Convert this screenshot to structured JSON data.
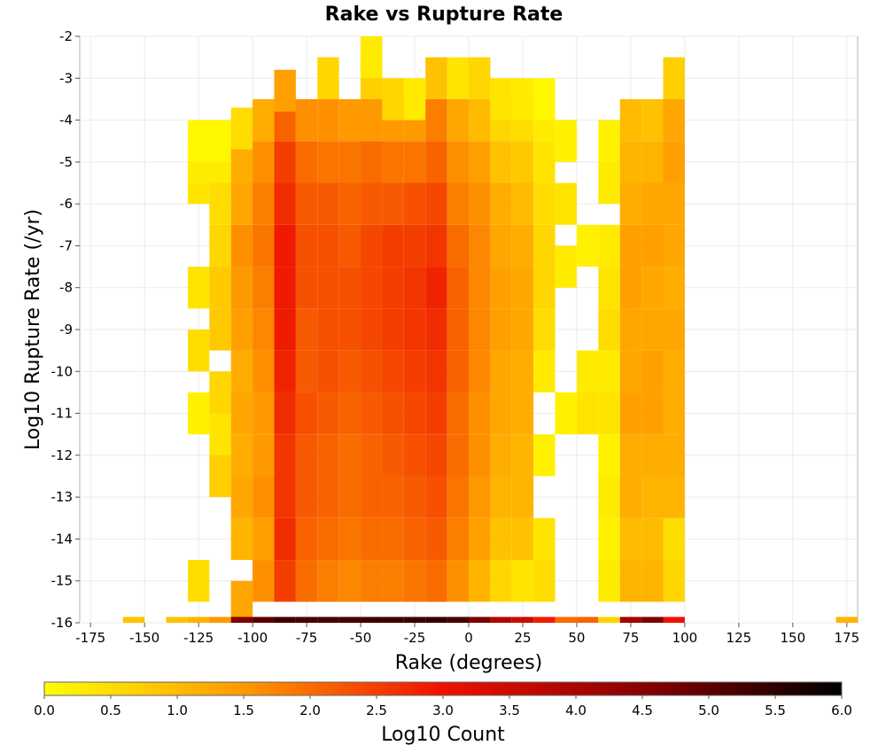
{
  "chart_data": {
    "type": "heatmap",
    "title": "Rake vs Rupture Rate",
    "xlabel": "Rake (degrees)",
    "ylabel": "Log10 Rupture Rate (/yr)",
    "xlim": [
      -180,
      180
    ],
    "ylim": [
      -16,
      -2
    ],
    "x_ticks": [
      -175,
      -150,
      -125,
      -100,
      -75,
      -50,
      -25,
      0,
      25,
      50,
      75,
      100,
      125,
      150,
      175
    ],
    "y_ticks": [
      -2,
      -3,
      -4,
      -5,
      -6,
      -7,
      -8,
      -9,
      -10,
      -11,
      -12,
      -13,
      -14,
      -15,
      -16
    ],
    "bin_x_width": 10,
    "bin_y_height": 0.5,
    "grid": true,
    "colorbar": {
      "label": "Log10 Count",
      "min": 0.0,
      "max": 6.0,
      "ticks": [
        "0.0",
        "0.5",
        "1.0",
        "1.5",
        "2.0",
        "2.5",
        "3.0",
        "3.5",
        "4.0",
        "4.5",
        "5.0",
        "5.5",
        "6.0"
      ],
      "stops": [
        "#ffff00",
        "#ff9900",
        "#ee1100",
        "#880000",
        "#000000"
      ],
      "placement": "bottom"
    },
    "columns": [
      {
        "rake": -155,
        "cells": [
          [
            -16,
            0.9
          ]
        ]
      },
      {
        "rake": -135,
        "cells": [
          [
            -16,
            0.9
          ]
        ]
      },
      {
        "rake": -125,
        "cells": [
          [
            -15,
            0.5
          ],
          [
            -11,
            0.2
          ],
          [
            -9.5,
            0.5
          ],
          [
            -8,
            0.4
          ],
          [
            -5.5,
            0.4
          ],
          [
            -5,
            0.3
          ],
          [
            -4.5,
            0.1
          ],
          [
            -16,
            1.1
          ]
        ]
      },
      {
        "rake": -115,
        "cells": [
          [
            -12.5,
            0.7
          ],
          [
            -11.5,
            0.4
          ],
          [
            -10.5,
            0.6
          ],
          [
            -9,
            0.8
          ],
          [
            -8,
            0.8
          ],
          [
            -7,
            0.6
          ],
          [
            -6,
            0.5
          ],
          [
            -5,
            0.3
          ],
          [
            -4.5,
            0.1
          ],
          [
            -16,
            1.5
          ]
        ]
      },
      {
        "rake": -105,
        "cells": [
          [
            -15.5,
            1.3
          ],
          [
            -14,
            1.1
          ],
          [
            -13,
            1.3
          ],
          [
            -12,
            1.2
          ],
          [
            -11,
            1.3
          ],
          [
            -10,
            1.2
          ],
          [
            -9,
            1.4
          ],
          [
            -8,
            1.5
          ],
          [
            -7,
            1.6
          ],
          [
            -6,
            1.3
          ],
          [
            -5,
            1.2
          ],
          [
            -4.2,
            0.5
          ],
          [
            -16,
            4.6
          ]
        ]
      },
      {
        "rake": -95,
        "cells": [
          [
            -15,
            1.6
          ],
          [
            -14,
            1.4
          ],
          [
            -13,
            1.6
          ],
          [
            -12,
            1.5
          ],
          [
            -11,
            1.5
          ],
          [
            -10,
            1.6
          ],
          [
            -9,
            1.7
          ],
          [
            -8,
            1.8
          ],
          [
            -7,
            1.9
          ],
          [
            -6,
            1.8
          ],
          [
            -5,
            1.6
          ],
          [
            -4,
            1.2
          ],
          [
            -16,
            5.0
          ]
        ]
      },
      {
        "rake": -85,
        "cells": [
          [
            -15,
            2.5
          ],
          [
            -14,
            2.7
          ],
          [
            -13,
            2.6
          ],
          [
            -12,
            2.6
          ],
          [
            -11,
            2.7
          ],
          [
            -10,
            2.8
          ],
          [
            -9,
            2.9
          ],
          [
            -8,
            2.9
          ],
          [
            -7,
            2.9
          ],
          [
            -6,
            2.7
          ],
          [
            -5,
            2.5
          ],
          [
            -4,
            2.1
          ],
          [
            -3.3,
            1.4
          ],
          [
            -16,
            5.3
          ]
        ]
      },
      {
        "rake": -75,
        "cells": [
          [
            -15,
            2.0
          ],
          [
            -14,
            2.1
          ],
          [
            -13,
            2.2
          ],
          [
            -12,
            2.2
          ],
          [
            -11,
            2.3
          ],
          [
            -10,
            2.2
          ],
          [
            -9,
            2.2
          ],
          [
            -8,
            2.3
          ],
          [
            -7,
            2.3
          ],
          [
            -6,
            2.2
          ],
          [
            -5,
            2.0
          ],
          [
            -4,
            1.6
          ],
          [
            -16,
            5.2
          ]
        ]
      },
      {
        "rake": -65,
        "cells": [
          [
            -15,
            1.8
          ],
          [
            -14,
            2.0
          ],
          [
            -13,
            2.1
          ],
          [
            -12,
            2.1
          ],
          [
            -11,
            2.2
          ],
          [
            -10,
            2.3
          ],
          [
            -9,
            2.3
          ],
          [
            -8,
            2.3
          ],
          [
            -7,
            2.3
          ],
          [
            -6,
            2.2
          ],
          [
            -5,
            1.9
          ],
          [
            -4,
            1.6
          ],
          [
            -3,
            0.6
          ],
          [
            -16,
            5.2
          ]
        ]
      },
      {
        "rake": -55,
        "cells": [
          [
            -15,
            1.7
          ],
          [
            -14,
            1.9
          ],
          [
            -13,
            2.0
          ],
          [
            -12,
            2.0
          ],
          [
            -11,
            2.1
          ],
          [
            -10,
            2.2
          ],
          [
            -9,
            2.3
          ],
          [
            -8,
            2.3
          ],
          [
            -7,
            2.2
          ],
          [
            -6,
            2.1
          ],
          [
            -5,
            1.9
          ],
          [
            -4,
            1.5
          ],
          [
            -16,
            5.2
          ]
        ]
      },
      {
        "rake": -45,
        "cells": [
          [
            -15,
            1.8
          ],
          [
            -14,
            2.0
          ],
          [
            -13,
            2.1
          ],
          [
            -12,
            2.1
          ],
          [
            -11,
            2.2
          ],
          [
            -10,
            2.3
          ],
          [
            -9,
            2.4
          ],
          [
            -8,
            2.4
          ],
          [
            -7,
            2.4
          ],
          [
            -6,
            2.2
          ],
          [
            -5,
            2.0
          ],
          [
            -4,
            1.5
          ],
          [
            -3,
            0.7
          ],
          [
            -2.5,
            0.3
          ],
          [
            -16,
            5.3
          ]
        ]
      },
      {
        "rake": -35,
        "cells": [
          [
            -15,
            1.8
          ],
          [
            -14,
            2.0
          ],
          [
            -13,
            2.1
          ],
          [
            -12,
            2.2
          ],
          [
            -11,
            2.3
          ],
          [
            -10,
            2.4
          ],
          [
            -9,
            2.5
          ],
          [
            -8,
            2.5
          ],
          [
            -7,
            2.5
          ],
          [
            -6,
            2.2
          ],
          [
            -5,
            1.9
          ],
          [
            -4,
            1.5
          ],
          [
            -3.5,
            0.6
          ],
          [
            -16,
            5.3
          ]
        ]
      },
      {
        "rake": -25,
        "cells": [
          [
            -15,
            1.9
          ],
          [
            -14,
            2.1
          ],
          [
            -13,
            2.2
          ],
          [
            -12,
            2.3
          ],
          [
            -11,
            2.4
          ],
          [
            -10,
            2.5
          ],
          [
            -9,
            2.6
          ],
          [
            -8,
            2.6
          ],
          [
            -7,
            2.5
          ],
          [
            -6,
            2.3
          ],
          [
            -5,
            1.9
          ],
          [
            -4,
            1.5
          ],
          [
            -3.5,
            0.3
          ],
          [
            -16,
            5.3
          ]
        ]
      },
      {
        "rake": -15,
        "cells": [
          [
            -15,
            2.0
          ],
          [
            -14,
            2.2
          ],
          [
            -13,
            2.3
          ],
          [
            -12,
            2.4
          ],
          [
            -11,
            2.5
          ],
          [
            -10,
            2.6
          ],
          [
            -9,
            2.7
          ],
          [
            -8,
            2.8
          ],
          [
            -7,
            2.6
          ],
          [
            -6,
            2.4
          ],
          [
            -5,
            2.1
          ],
          [
            -4,
            1.8
          ],
          [
            -3,
            0.9
          ],
          [
            -16,
            5.4
          ]
        ]
      },
      {
        "rake": -5,
        "cells": [
          [
            -15,
            1.6
          ],
          [
            -14,
            1.8
          ],
          [
            -13,
            1.9
          ],
          [
            -12,
            2.0
          ],
          [
            -11,
            2.0
          ],
          [
            -10,
            2.1
          ],
          [
            -9,
            2.1
          ],
          [
            -8,
            2.1
          ],
          [
            -7,
            2.0
          ],
          [
            -6,
            1.8
          ],
          [
            -5,
            1.6
          ],
          [
            -4,
            1.3
          ],
          [
            -3,
            0.4
          ],
          [
            -16,
            5.2
          ]
        ]
      },
      {
        "rake": 5,
        "cells": [
          [
            -15,
            1.1
          ],
          [
            -14,
            1.4
          ],
          [
            -13,
            1.5
          ],
          [
            -12,
            1.6
          ],
          [
            -11,
            1.6
          ],
          [
            -10,
            1.7
          ],
          [
            -9,
            1.7
          ],
          [
            -8,
            1.7
          ],
          [
            -7,
            1.7
          ],
          [
            -6,
            1.6
          ],
          [
            -5,
            1.4
          ],
          [
            -4,
            1.0
          ],
          [
            -3,
            0.6
          ],
          [
            -16,
            4.6
          ]
        ]
      },
      {
        "rake": 15,
        "cells": [
          [
            -15,
            0.6
          ],
          [
            -14,
            0.9
          ],
          [
            -13,
            1.1
          ],
          [
            -12,
            1.2
          ],
          [
            -11,
            1.3
          ],
          [
            -10,
            1.3
          ],
          [
            -9,
            1.4
          ],
          [
            -8,
            1.4
          ],
          [
            -7,
            1.3
          ],
          [
            -6,
            1.2
          ],
          [
            -5,
            0.9
          ],
          [
            -4,
            0.6
          ],
          [
            -3.5,
            0.4
          ],
          [
            -16,
            3.9
          ]
        ]
      },
      {
        "rake": 25,
        "cells": [
          [
            -15,
            0.4
          ],
          [
            -14,
            0.9
          ],
          [
            -13,
            1.1
          ],
          [
            -12,
            1.1
          ],
          [
            -11,
            1.2
          ],
          [
            -10,
            1.2
          ],
          [
            -9,
            1.3
          ],
          [
            -8,
            1.3
          ],
          [
            -7,
            1.2
          ],
          [
            -6,
            1.0
          ],
          [
            -5,
            0.8
          ],
          [
            -4,
            0.5
          ],
          [
            -3.5,
            0.3
          ],
          [
            -16,
            3.5
          ]
        ]
      },
      {
        "rake": 35,
        "cells": [
          [
            -15,
            0.5
          ],
          [
            -14,
            0.4
          ],
          [
            -12,
            0.2
          ],
          [
            -10,
            0.3
          ],
          [
            -9,
            0.5
          ],
          [
            -8,
            0.6
          ],
          [
            -7,
            0.6
          ],
          [
            -6,
            0.5
          ],
          [
            -5,
            0.4
          ],
          [
            -4,
            0.3
          ],
          [
            -3.5,
            0.1
          ],
          [
            -16,
            2.9
          ]
        ]
      },
      {
        "rake": 45,
        "cells": [
          [
            -11,
            0.2
          ],
          [
            -7.5,
            0.3
          ],
          [
            -6,
            0.4
          ],
          [
            -4.5,
            0.2
          ],
          [
            -16,
            2.0
          ]
        ]
      },
      {
        "rake": 55,
        "cells": [
          [
            -11,
            0.4
          ],
          [
            -10,
            0.3
          ],
          [
            -7,
            0.2
          ],
          [
            -16,
            2.1
          ]
        ]
      },
      {
        "rake": 65,
        "cells": [
          [
            -15,
            0.3
          ],
          [
            -14,
            0.2
          ],
          [
            -13,
            0.3
          ],
          [
            -12,
            0.2
          ],
          [
            -11,
            0.4
          ],
          [
            -10,
            0.3
          ],
          [
            -9,
            0.5
          ],
          [
            -8,
            0.4
          ],
          [
            -7,
            0.3
          ],
          [
            -5.5,
            0.3
          ],
          [
            -4.5,
            0.2
          ],
          [
            -16,
            0.6
          ]
        ]
      },
      {
        "rake": 75,
        "cells": [
          [
            -15,
            1.1
          ],
          [
            -14,
            1.0
          ],
          [
            -13,
            1.2
          ],
          [
            -12,
            1.2
          ],
          [
            -11,
            1.4
          ],
          [
            -10,
            1.3
          ],
          [
            -9,
            1.3
          ],
          [
            -8,
            1.4
          ],
          [
            -7,
            1.4
          ],
          [
            -6,
            1.2
          ],
          [
            -5,
            1.1
          ],
          [
            -4,
            1.0
          ],
          [
            -16,
            4.1
          ]
        ]
      },
      {
        "rake": 85,
        "cells": [
          [
            -15,
            1.1
          ],
          [
            -14,
            1.0
          ],
          [
            -13,
            1.1
          ],
          [
            -12,
            1.2
          ],
          [
            -11,
            1.4
          ],
          [
            -10,
            1.4
          ],
          [
            -9,
            1.3
          ],
          [
            -8,
            1.3
          ],
          [
            -7,
            1.4
          ],
          [
            -6,
            1.3
          ],
          [
            -5,
            1.1
          ],
          [
            -4,
            0.9
          ],
          [
            -16,
            4.6
          ]
        ]
      },
      {
        "rake": 95,
        "cells": [
          [
            -15,
            0.6
          ],
          [
            -14,
            0.5
          ],
          [
            -13,
            1.1
          ],
          [
            -12,
            1.2
          ],
          [
            -11,
            1.2
          ],
          [
            -10,
            1.2
          ],
          [
            -9,
            1.3
          ],
          [
            -8,
            1.2
          ],
          [
            -7,
            1.3
          ],
          [
            -6,
            1.3
          ],
          [
            -5,
            1.4
          ],
          [
            -4,
            1.3
          ],
          [
            -3,
            0.7
          ],
          [
            -16,
            3.0
          ]
        ]
      },
      {
        "rake": 175,
        "cells": [
          [
            -16,
            1.1
          ]
        ]
      }
    ]
  }
}
